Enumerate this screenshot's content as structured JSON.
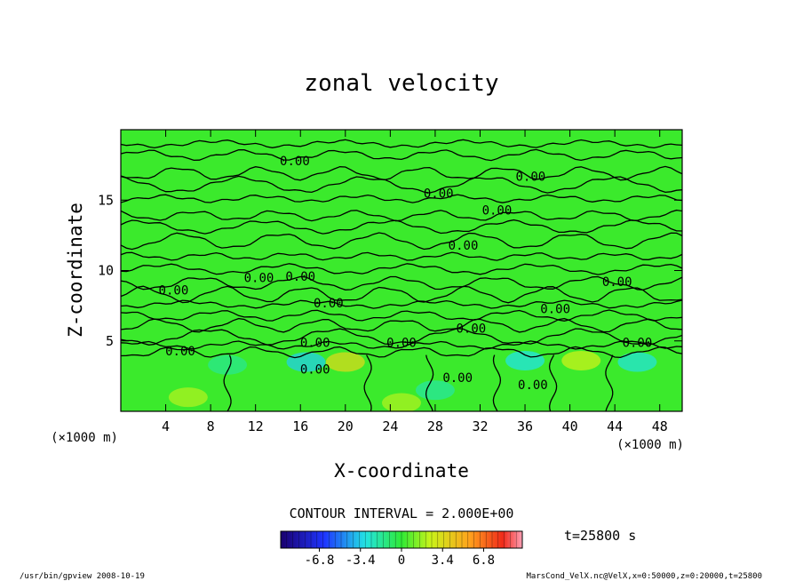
{
  "chart_data": {
    "type": "heatmap",
    "subtype": "contour",
    "title": "zonal velocity",
    "xlabel": "X-coordinate",
    "ylabel": "Z-coordinate",
    "x_unit_left": "(×1000 m)",
    "x_unit_right": "(×1000 m)",
    "xlim": [
      0,
      50
    ],
    "ylim": [
      0,
      20
    ],
    "x_ticks": [
      4,
      8,
      12,
      16,
      20,
      24,
      28,
      32,
      36,
      40,
      44,
      48
    ],
    "y_ticks": [
      5,
      10,
      15
    ],
    "contour_interval_text": "CONTOUR INTERVAL = 2.000E+00",
    "time_text": "t=25800 s",
    "footer_left": "/usr/bin/gpview   2008-10-19",
    "footer_right": "MarsCond_VelX.nc@VelX,x=0:50000,z=0:20000,t=25800",
    "colorbar": {
      "range": [
        -10,
        10
      ],
      "tick_values": [
        -6.8,
        -3.4,
        0,
        3.4,
        6.8
      ],
      "tick_labels": [
        "-6.8",
        "-3.4",
        "0",
        "3.4",
        "6.8"
      ]
    },
    "contour_labels": [
      {
        "text": "0.00",
        "x": 15.5,
        "z": 17.8
      },
      {
        "text": "0.00",
        "x": 36.5,
        "z": 16.7
      },
      {
        "text": "0.00",
        "x": 28.3,
        "z": 15.5
      },
      {
        "text": "0.00",
        "x": 33.5,
        "z": 14.3
      },
      {
        "text": "0.00",
        "x": 30.5,
        "z": 11.8
      },
      {
        "text": "0.00",
        "x": 12.3,
        "z": 9.5
      },
      {
        "text": "0.00",
        "x": 16.0,
        "z": 9.6
      },
      {
        "text": "0.00",
        "x": 4.7,
        "z": 8.6
      },
      {
        "text": "0.00",
        "x": 44.2,
        "z": 9.2
      },
      {
        "text": "0.00",
        "x": 18.5,
        "z": 7.7
      },
      {
        "text": "0.00",
        "x": 38.7,
        "z": 7.3
      },
      {
        "text": "0.00",
        "x": 31.2,
        "z": 5.9
      },
      {
        "text": "0.00",
        "x": 17.3,
        "z": 4.9
      },
      {
        "text": "0.00",
        "x": 25.0,
        "z": 4.9
      },
      {
        "text": "0.00",
        "x": 46.0,
        "z": 4.9
      },
      {
        "text": "0.00",
        "x": 5.3,
        "z": 4.3
      },
      {
        "text": "0.00",
        "x": 17.3,
        "z": 3.0
      },
      {
        "text": "0.00",
        "x": 30.0,
        "z": 2.4
      },
      {
        "text": "0.00",
        "x": 36.7,
        "z": 1.9
      }
    ],
    "contour_lines_z": [
      19.0,
      18.2,
      16.9,
      16.1,
      15.1,
      13.9,
      13.1,
      12.1,
      11.0,
      10.1,
      9.1,
      8.3,
      7.6,
      6.8,
      6.1,
      5.3,
      4.7,
      4.2
    ],
    "warm_blobs": [
      {
        "x": 20.0,
        "z": 3.5,
        "v": 3.4
      },
      {
        "x": 6.0,
        "z": 1.0,
        "v": 2.0
      },
      {
        "x": 41.0,
        "z": 3.6,
        "v": 2.5
      },
      {
        "x": 25.0,
        "z": 0.6,
        "v": 2.0
      }
    ],
    "cool_blobs": [
      {
        "x": 16.5,
        "z": 3.5,
        "v": -3.4
      },
      {
        "x": 36.0,
        "z": 3.6,
        "v": -3.0
      },
      {
        "x": 46.0,
        "z": 3.5,
        "v": -2.8
      },
      {
        "x": 9.5,
        "z": 3.3,
        "v": -1.5
      },
      {
        "x": 28.0,
        "z": 1.5,
        "v": -1.8
      }
    ]
  }
}
